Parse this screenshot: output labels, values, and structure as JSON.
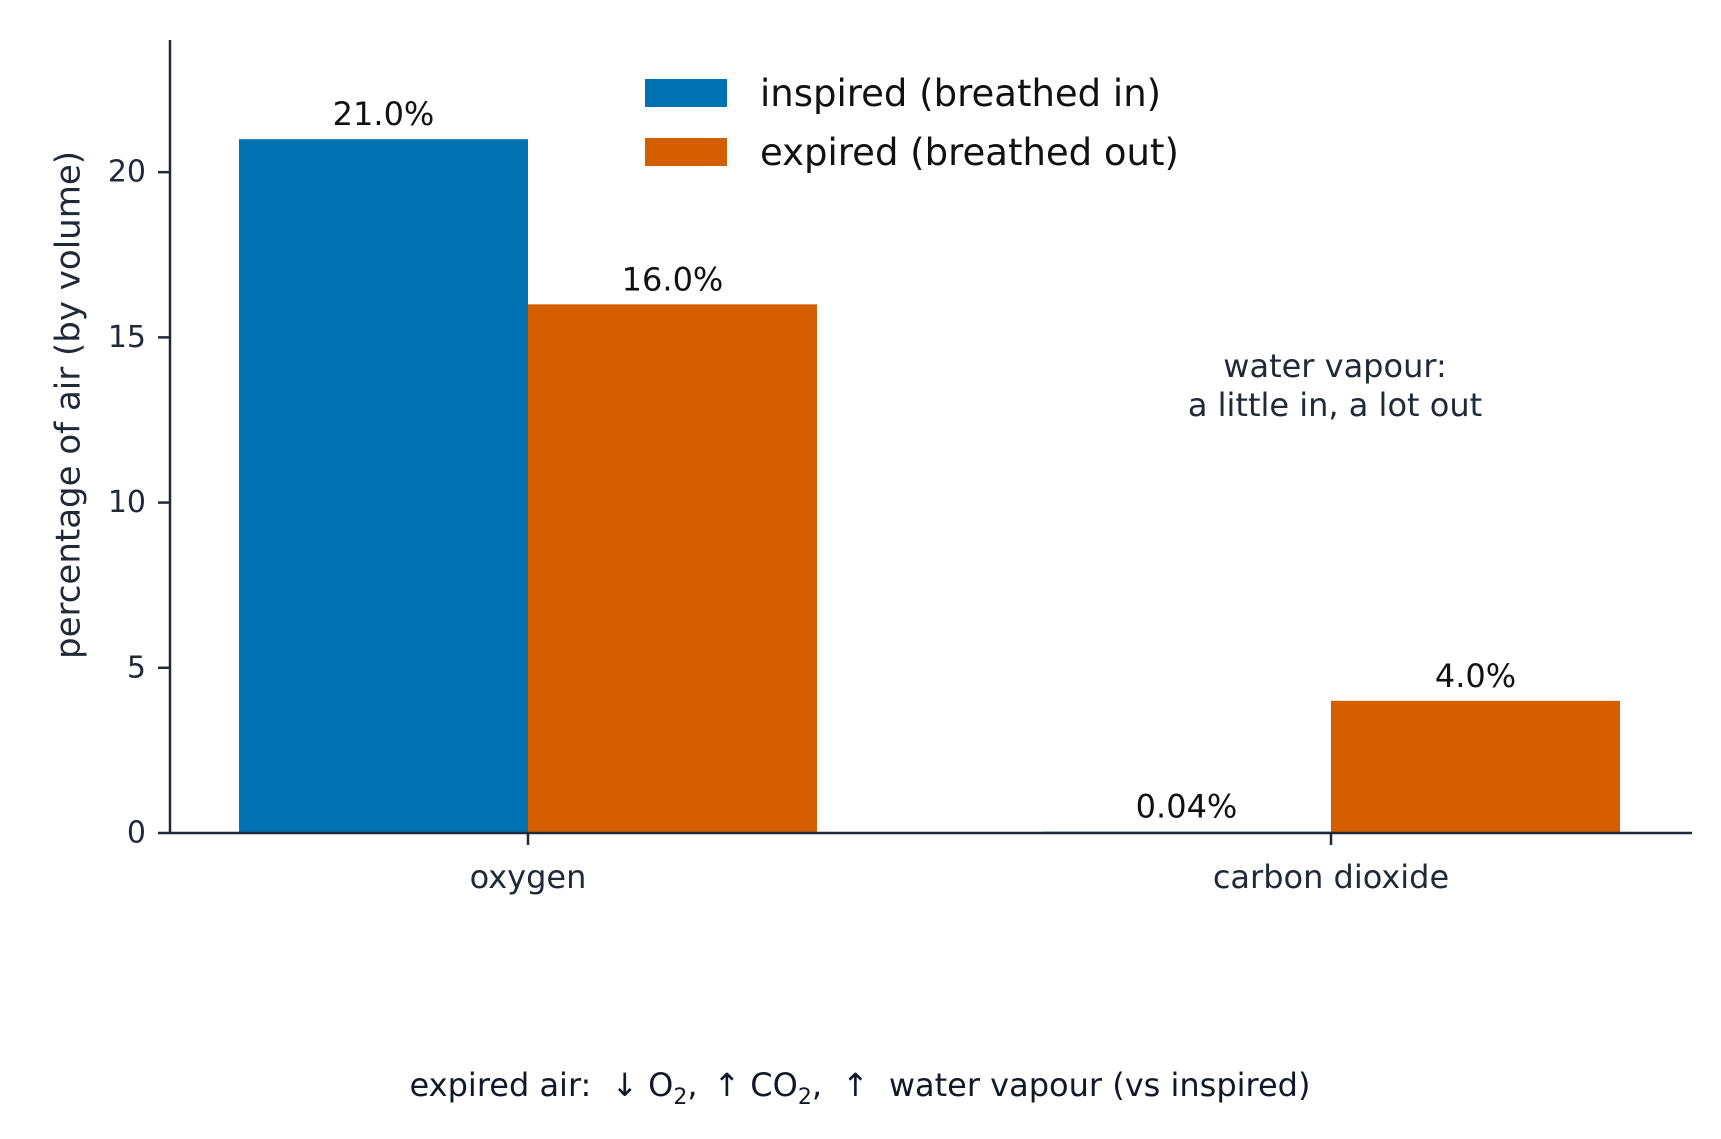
{
  "chart_data": {
    "type": "bar",
    "categories": [
      "oxygen",
      "carbon dioxide"
    ],
    "series": [
      {
        "name": "inspired (breathed in)",
        "values": [
          21.0,
          0.04
        ],
        "labels": [
          "21.0%",
          "0.04%"
        ],
        "color": "#0072b2"
      },
      {
        "name": "expired (breathed out)",
        "values": [
          16.0,
          4.0
        ],
        "labels": [
          "16.0%",
          "4.0%"
        ],
        "color": "#d55e00"
      }
    ],
    "xlabel": "",
    "ylabel": "percentage of air (by volume)",
    "ylim": [
      0,
      24
    ],
    "yticks": [
      0,
      5,
      10,
      15,
      20
    ],
    "grid": false,
    "legend_position": "top-center",
    "annotation": {
      "line1": "water vapour:",
      "line2": "a little in, a lot out"
    },
    "footer": {
      "prefix": "expired air:",
      "o2_arrow": "↓",
      "o2_base": "O",
      "o2_sub": "2",
      "co2_arrow": "↑",
      "co2_base": "CO",
      "co2_sub": "2",
      "wv_arrow": "↑",
      "wv_text": "water vapour (vs inspired)"
    },
    "axis_color": "#1f2937"
  }
}
